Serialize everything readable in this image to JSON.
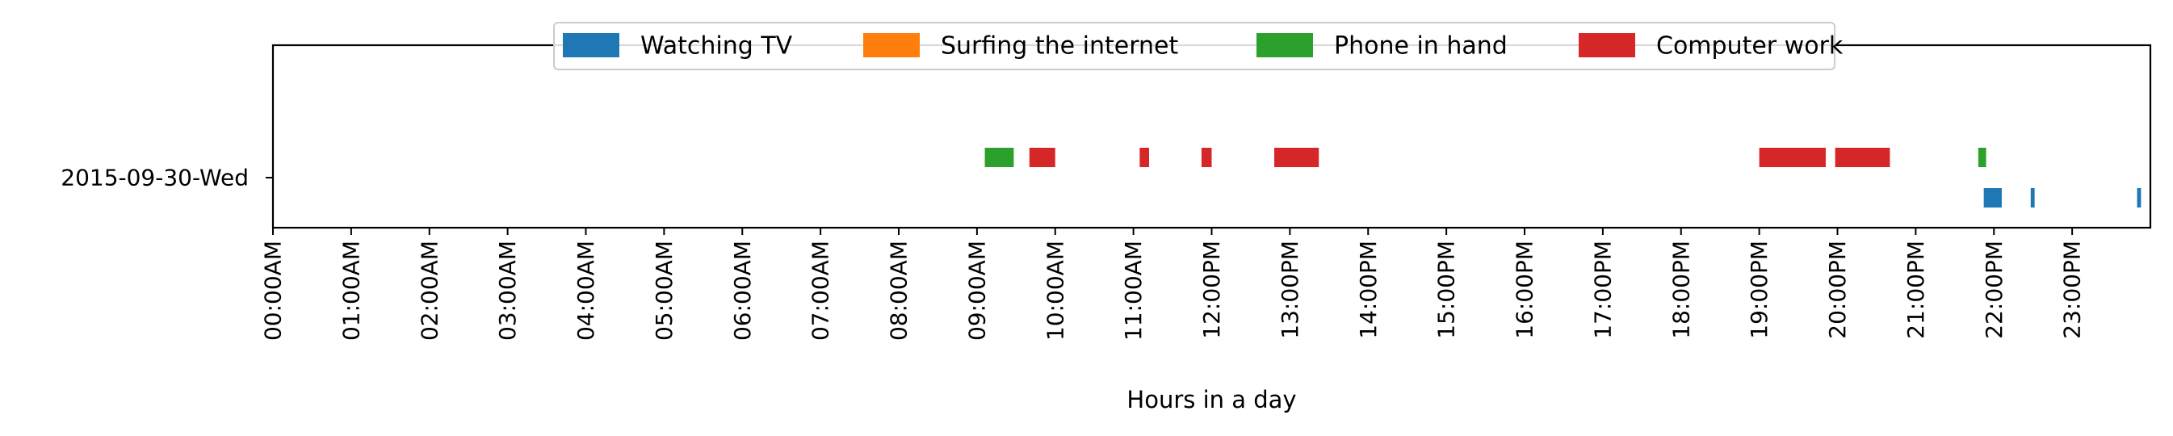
{
  "chart_data": {
    "type": "timeline",
    "xlabel": "Hours in a day",
    "ylabel": "",
    "title": "",
    "xlim": [
      0,
      24
    ],
    "x_tick_labels": [
      "00:00AM",
      "01:00AM",
      "02:00AM",
      "03:00AM",
      "04:00AM",
      "05:00AM",
      "06:00AM",
      "07:00AM",
      "08:00AM",
      "09:00AM",
      "10:00AM",
      "11:00AM",
      "12:00PM",
      "13:00PM",
      "14:00PM",
      "15:00PM",
      "16:00PM",
      "17:00PM",
      "18:00PM",
      "19:00PM",
      "20:00PM",
      "21:00PM",
      "22:00PM",
      "23:00PM"
    ],
    "y_tick_labels": [
      "2015-09-30-Wed"
    ],
    "legend_position": "top-center",
    "grid": false,
    "series": [
      {
        "name": "Watching TV",
        "color": "#1f77b4",
        "lane": 0,
        "intervals": [
          [
            21.87,
            22.1
          ],
          [
            22.47,
            22.52
          ],
          [
            23.83,
            23.88
          ]
        ]
      },
      {
        "name": "Surfing the internet",
        "color": "#ff7f0e",
        "lane": 1,
        "intervals": []
      },
      {
        "name": "Phone in hand",
        "color": "#2ca02c",
        "lane": 2,
        "intervals": [
          [
            9.1,
            9.47
          ],
          [
            21.8,
            21.9
          ]
        ]
      },
      {
        "name": "Computer work",
        "color": "#d62728",
        "lane": 2,
        "intervals": [
          [
            9.67,
            10.0
          ],
          [
            11.08,
            11.2
          ],
          [
            11.87,
            12.0
          ],
          [
            12.8,
            13.37
          ],
          [
            19.0,
            19.85
          ],
          [
            19.97,
            20.67
          ]
        ]
      }
    ]
  }
}
